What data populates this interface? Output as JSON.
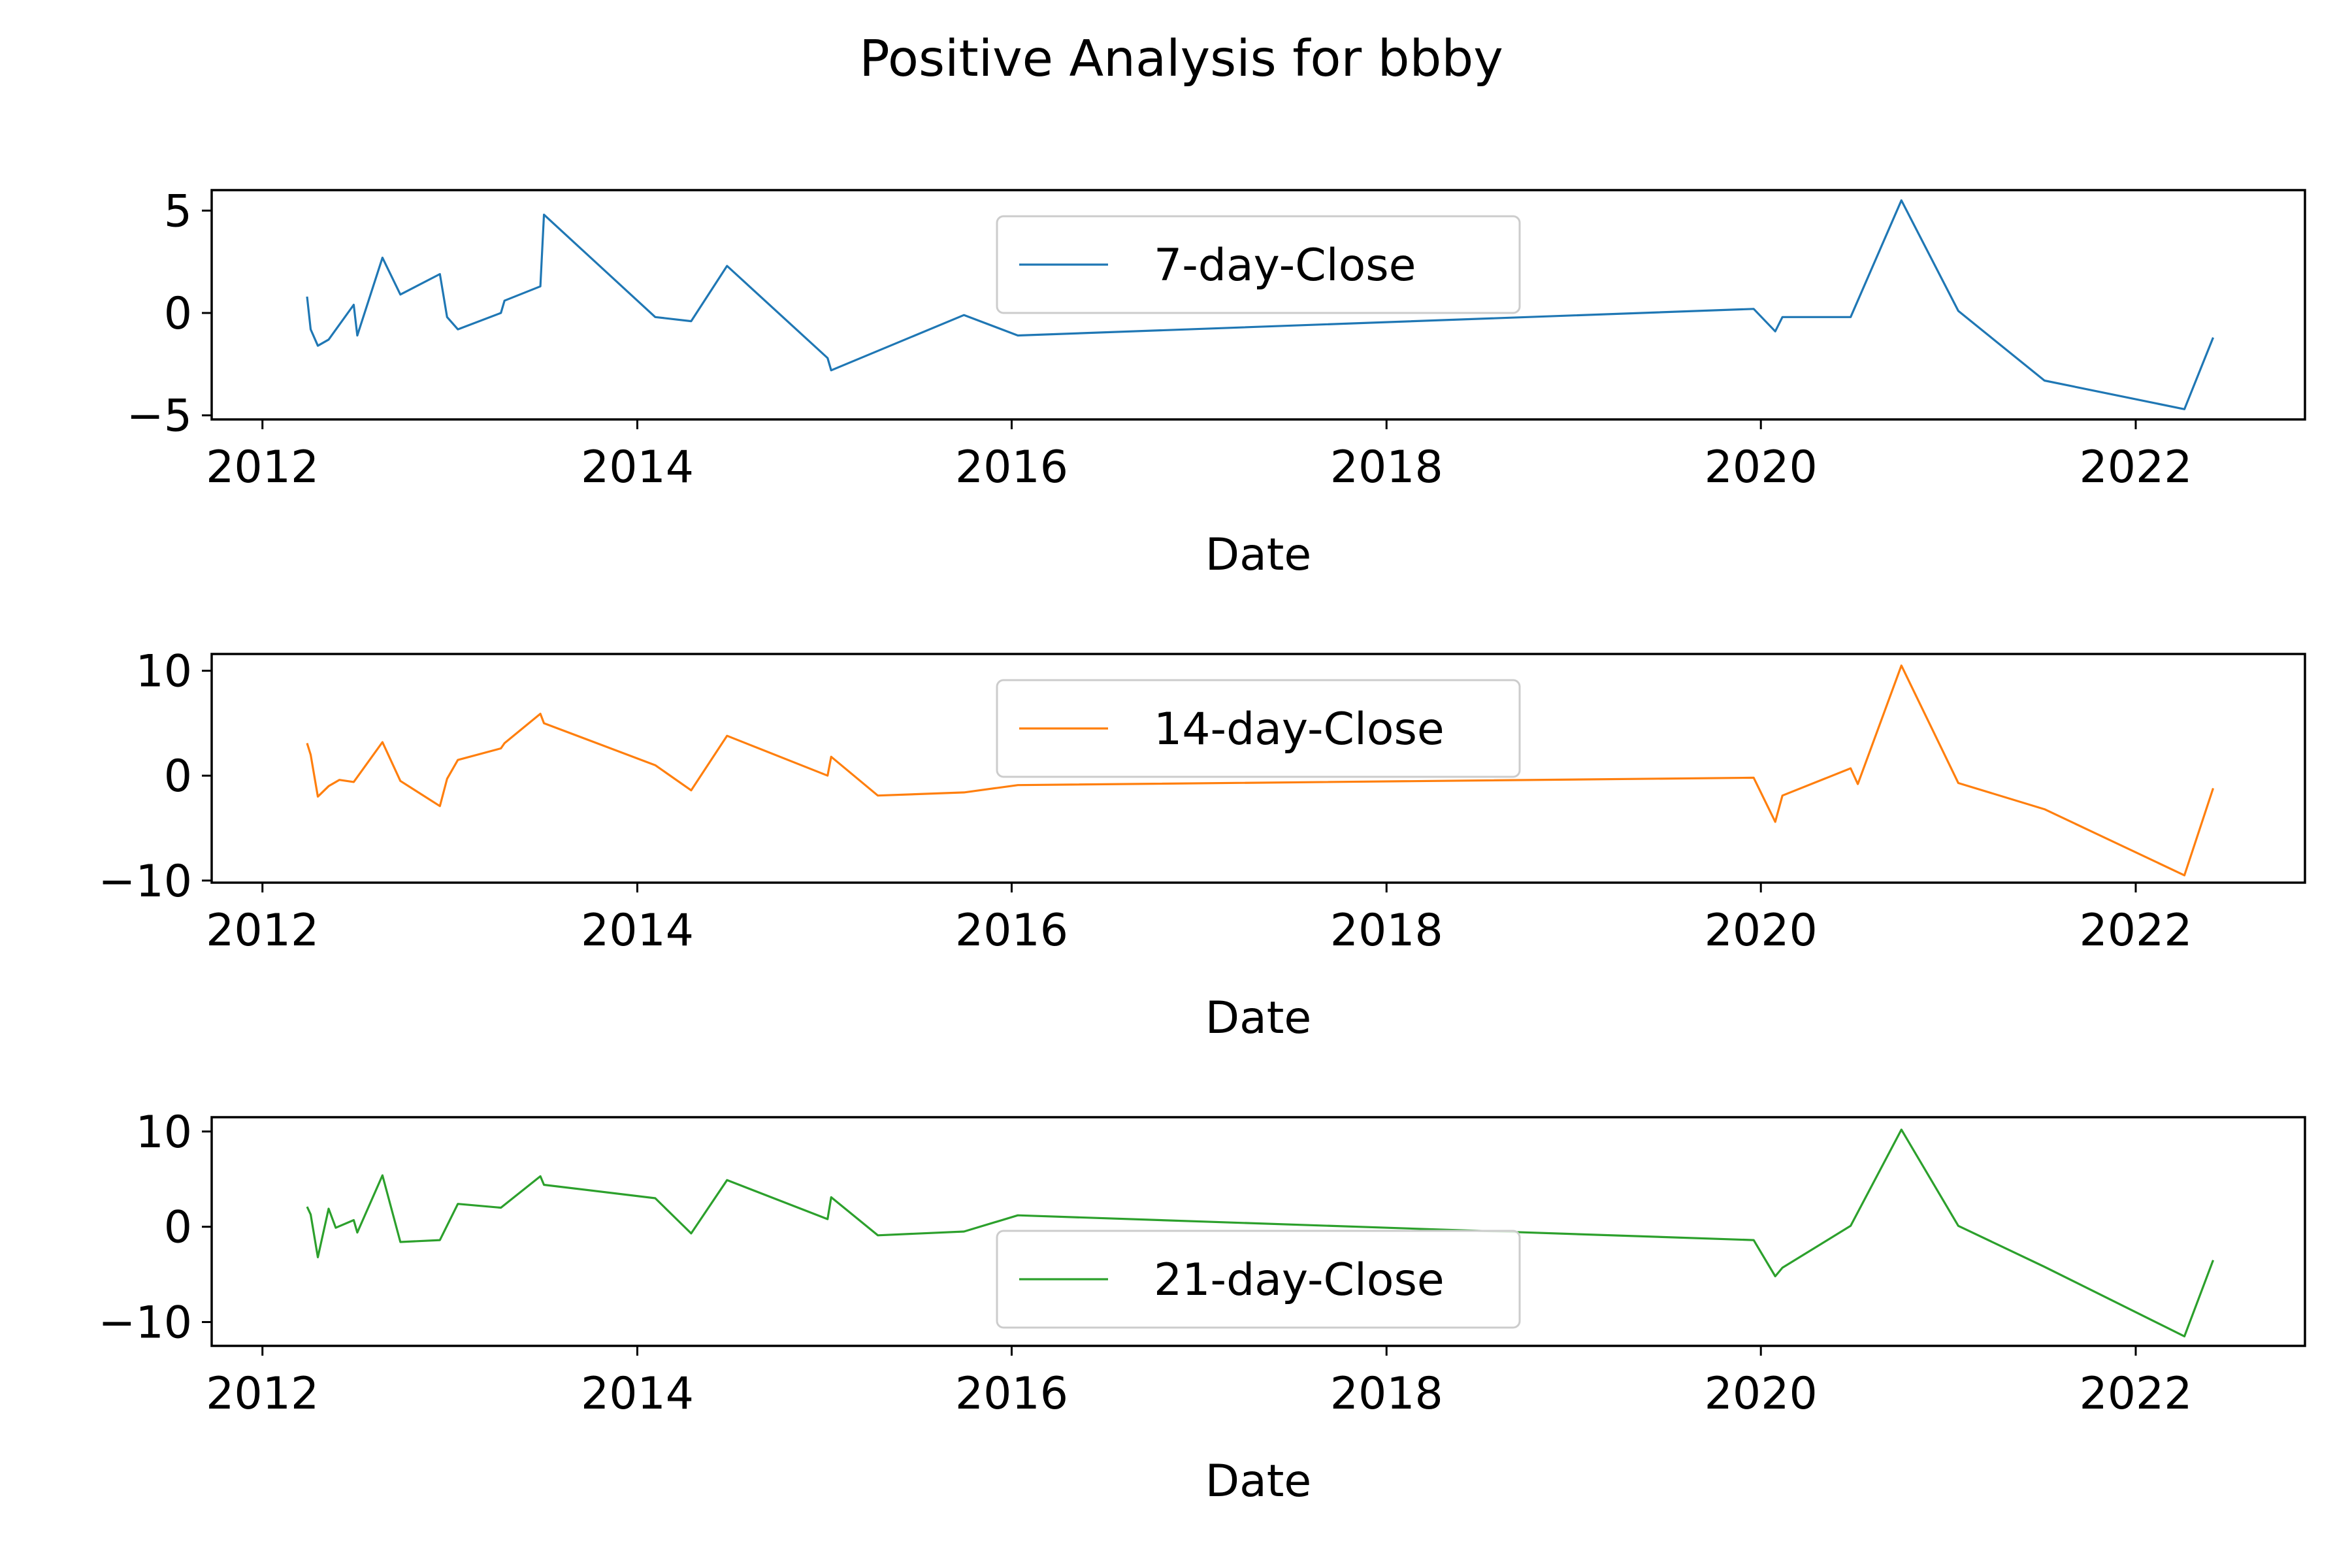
{
  "figure": {
    "title": "Positive Analysis for bbby"
  },
  "chart_data": [
    {
      "type": "line",
      "xlabel": "Date",
      "ylabel": "",
      "xlim": [
        "2011-09-24",
        "2022-11-27"
      ],
      "ylim": [
        -5.2,
        6.0
      ],
      "x_ticks": [
        "2012",
        "2014",
        "2016",
        "2018",
        "2020",
        "2022"
      ],
      "y_ticks": [
        -5,
        0,
        5
      ],
      "y_tick_labels": [
        "−5",
        "0",
        "5"
      ],
      "grid": false,
      "legend_position": "upper center",
      "series": [
        {
          "name": "7-day-Close",
          "color": "#1f77b4",
          "points": [
            [
              "2012-03-28",
              0.8
            ],
            [
              "2012-04-04",
              -0.8
            ],
            [
              "2012-04-18",
              -1.6
            ],
            [
              "2012-05-09",
              -1.3
            ],
            [
              "2012-06-27",
              0.4
            ],
            [
              "2012-07-04",
              -1.1
            ],
            [
              "2012-08-22",
              2.7
            ],
            [
              "2012-09-26",
              0.9
            ],
            [
              "2012-12-12",
              1.9
            ],
            [
              "2012-12-26",
              -0.2
            ],
            [
              "2013-01-16",
              -0.8
            ],
            [
              "2013-04-10",
              0.0
            ],
            [
              "2013-04-17",
              0.6
            ],
            [
              "2013-06-26",
              1.3
            ],
            [
              "2013-07-03",
              4.8
            ],
            [
              "2014-02-05",
              -0.2
            ],
            [
              "2014-04-16",
              -0.4
            ],
            [
              "2014-06-25",
              2.3
            ],
            [
              "2015-01-07",
              -2.2
            ],
            [
              "2015-01-14",
              -2.8
            ],
            [
              "2015-09-30",
              -0.1
            ],
            [
              "2016-01-13",
              -1.1
            ],
            [
              "2019-12-18",
              0.2
            ],
            [
              "2020-01-29",
              -0.9
            ],
            [
              "2020-02-12",
              -0.2
            ],
            [
              "2020-06-24",
              -0.2
            ],
            [
              "2020-10-01",
              5.5
            ],
            [
              "2021-01-20",
              0.1
            ],
            [
              "2021-07-07",
              -3.3
            ],
            [
              "2022-04-06",
              -4.7
            ],
            [
              "2022-06-01",
              -1.2
            ]
          ]
        }
      ]
    },
    {
      "type": "line",
      "xlabel": "Date",
      "ylabel": "",
      "xlim": [
        "2011-09-24",
        "2022-11-27"
      ],
      "ylim": [
        -10.2,
        11.6
      ],
      "x_ticks": [
        "2012",
        "2014",
        "2016",
        "2018",
        "2020",
        "2022"
      ],
      "y_ticks": [
        -10,
        0,
        10
      ],
      "y_tick_labels": [
        "−10",
        "0",
        "10"
      ],
      "grid": false,
      "legend_position": "upper center",
      "series": [
        {
          "name": "14-day-Close",
          "color": "#ff7f0e",
          "points": [
            [
              "2012-03-28",
              3.1
            ],
            [
              "2012-04-04",
              2.0
            ],
            [
              "2012-04-18",
              -2.0
            ],
            [
              "2012-05-09",
              -1.0
            ],
            [
              "2012-05-30",
              -0.4
            ],
            [
              "2012-06-27",
              -0.6
            ],
            [
              "2012-08-22",
              3.2
            ],
            [
              "2012-09-26",
              -0.5
            ],
            [
              "2012-12-12",
              -2.9
            ],
            [
              "2012-12-26",
              -0.3
            ],
            [
              "2013-01-16",
              1.5
            ],
            [
              "2013-04-10",
              2.6
            ],
            [
              "2013-04-17",
              3.1
            ],
            [
              "2013-06-26",
              5.9
            ],
            [
              "2013-07-03",
              5.0
            ],
            [
              "2014-02-05",
              1.0
            ],
            [
              "2014-04-16",
              -1.4
            ],
            [
              "2014-06-25",
              3.8
            ],
            [
              "2015-01-07",
              0.0
            ],
            [
              "2015-01-14",
              1.8
            ],
            [
              "2015-04-15",
              -1.9
            ],
            [
              "2015-09-30",
              -1.6
            ],
            [
              "2016-01-13",
              -0.9
            ],
            [
              "2019-12-18",
              -0.2
            ],
            [
              "2020-01-29",
              -4.4
            ],
            [
              "2020-02-12",
              -1.9
            ],
            [
              "2020-06-24",
              0.7
            ],
            [
              "2020-07-08",
              -0.8
            ],
            [
              "2020-10-01",
              10.5
            ],
            [
              "2021-01-20",
              -0.7
            ],
            [
              "2021-07-07",
              -3.2
            ],
            [
              "2022-04-06",
              -9.5
            ],
            [
              "2022-06-01",
              -1.2
            ]
          ]
        }
      ]
    },
    {
      "type": "line",
      "xlabel": "Date",
      "ylabel": "",
      "xlim": [
        "2011-09-24",
        "2022-11-27"
      ],
      "ylim": [
        -12.5,
        11.5
      ],
      "x_ticks": [
        "2012",
        "2014",
        "2016",
        "2018",
        "2020",
        "2022"
      ],
      "y_ticks": [
        -10,
        0,
        10
      ],
      "y_tick_labels": [
        "−10",
        "0",
        "10"
      ],
      "grid": false,
      "legend_position": "lower center",
      "series": [
        {
          "name": "21-day-Close",
          "color": "#2ca02c",
          "points": [
            [
              "2012-03-28",
              2.1
            ],
            [
              "2012-04-04",
              1.3
            ],
            [
              "2012-04-18",
              -3.2
            ],
            [
              "2012-05-09",
              1.9
            ],
            [
              "2012-05-23",
              -0.1
            ],
            [
              "2012-06-27",
              0.7
            ],
            [
              "2012-07-04",
              -0.6
            ],
            [
              "2012-08-22",
              5.4
            ],
            [
              "2012-09-26",
              -1.6
            ],
            [
              "2012-12-12",
              -1.4
            ],
            [
              "2013-01-16",
              2.4
            ],
            [
              "2013-04-10",
              2.0
            ],
            [
              "2013-06-26",
              5.3
            ],
            [
              "2013-07-03",
              4.4
            ],
            [
              "2014-02-05",
              3.0
            ],
            [
              "2014-04-16",
              -0.7
            ],
            [
              "2014-06-25",
              4.9
            ],
            [
              "2015-01-07",
              0.8
            ],
            [
              "2015-01-14",
              3.1
            ],
            [
              "2015-04-15",
              -0.9
            ],
            [
              "2015-09-30",
              -0.5
            ],
            [
              "2016-01-13",
              1.2
            ],
            [
              "2019-12-18",
              -1.4
            ],
            [
              "2020-01-29",
              -5.2
            ],
            [
              "2020-02-12",
              -4.3
            ],
            [
              "2020-06-24",
              0.1
            ],
            [
              "2020-10-01",
              10.2
            ],
            [
              "2021-01-20",
              0.1
            ],
            [
              "2021-07-07",
              -4.2
            ],
            [
              "2022-04-06",
              -11.5
            ],
            [
              "2022-06-01",
              -3.5
            ]
          ]
        }
      ]
    }
  ]
}
